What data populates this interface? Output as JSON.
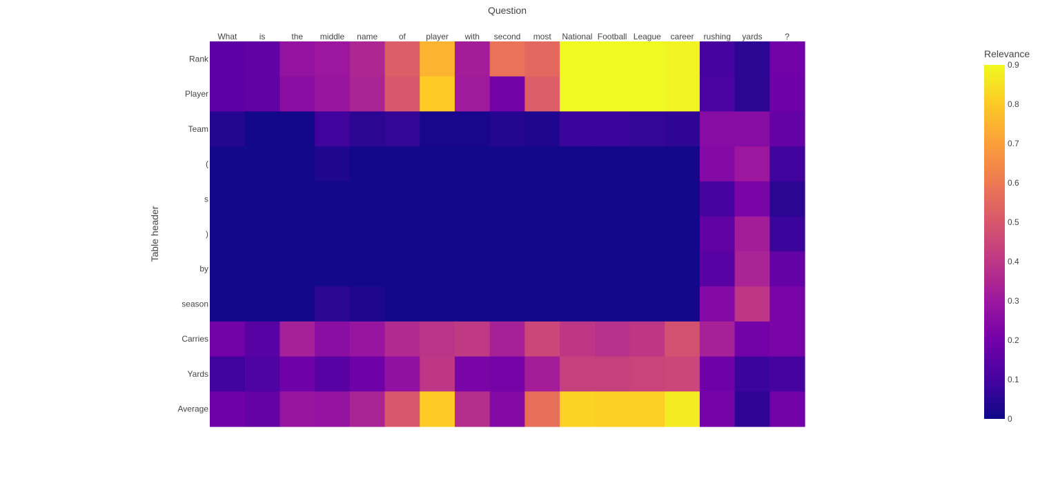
{
  "chart_data": {
    "type": "heatmap",
    "xlabel": "Question",
    "ylabel": "Table header",
    "x_categories": [
      "What",
      "is",
      "the",
      "middle",
      "name",
      "of",
      "player",
      "with",
      "second",
      "most",
      "National",
      "Football",
      "League",
      "career",
      "rushing",
      "yards",
      "?"
    ],
    "y_categories": [
      "Rank",
      "Player",
      "Team",
      "(",
      "s",
      ")",
      "by",
      "season",
      "Carries",
      "Yards",
      "Average"
    ],
    "values": [
      [
        0.15,
        0.16,
        0.28,
        0.3,
        0.35,
        0.52,
        0.75,
        0.32,
        0.58,
        0.55,
        0.9,
        0.9,
        0.9,
        0.89,
        0.1,
        0.05,
        0.2
      ],
      [
        0.15,
        0.16,
        0.26,
        0.29,
        0.34,
        0.5,
        0.8,
        0.31,
        0.2,
        0.52,
        0.9,
        0.9,
        0.9,
        0.89,
        0.11,
        0.05,
        0.19
      ],
      [
        0.04,
        0.01,
        0.01,
        0.09,
        0.05,
        0.07,
        0.02,
        0.02,
        0.04,
        0.03,
        0.08,
        0.08,
        0.07,
        0.06,
        0.25,
        0.25,
        0.17
      ],
      [
        0.01,
        0.01,
        0.01,
        0.03,
        0.01,
        0.01,
        0.01,
        0.01,
        0.01,
        0.01,
        0.01,
        0.01,
        0.01,
        0.01,
        0.24,
        0.3,
        0.09
      ],
      [
        0.01,
        0.01,
        0.01,
        0.01,
        0.01,
        0.01,
        0.01,
        0.01,
        0.01,
        0.01,
        0.01,
        0.01,
        0.01,
        0.01,
        0.1,
        0.22,
        0.05
      ],
      [
        0.01,
        0.01,
        0.01,
        0.01,
        0.01,
        0.01,
        0.01,
        0.01,
        0.01,
        0.01,
        0.01,
        0.01,
        0.01,
        0.01,
        0.16,
        0.32,
        0.08
      ],
      [
        0.01,
        0.01,
        0.01,
        0.01,
        0.01,
        0.01,
        0.01,
        0.01,
        0.01,
        0.01,
        0.01,
        0.01,
        0.01,
        0.01,
        0.14,
        0.34,
        0.17
      ],
      [
        0.01,
        0.01,
        0.01,
        0.05,
        0.03,
        0.01,
        0.01,
        0.01,
        0.01,
        0.01,
        0.01,
        0.01,
        0.01,
        0.01,
        0.24,
        0.4,
        0.22
      ],
      [
        0.2,
        0.14,
        0.33,
        0.26,
        0.29,
        0.36,
        0.39,
        0.41,
        0.33,
        0.45,
        0.4,
        0.38,
        0.4,
        0.48,
        0.33,
        0.2,
        0.22
      ],
      [
        0.09,
        0.12,
        0.19,
        0.14,
        0.19,
        0.27,
        0.4,
        0.22,
        0.21,
        0.32,
        0.43,
        0.43,
        0.44,
        0.45,
        0.19,
        0.08,
        0.1
      ],
      [
        0.19,
        0.17,
        0.29,
        0.28,
        0.34,
        0.5,
        0.8,
        0.37,
        0.24,
        0.57,
        0.82,
        0.81,
        0.81,
        0.87,
        0.21,
        0.06,
        0.2
      ]
    ],
    "zlim": [
      0,
      0.9
    ],
    "colorscale": [
      "#0d0887",
      "#46039f",
      "#7201a8",
      "#9c179e",
      "#bd3786",
      "#d8576b",
      "#ed7953",
      "#fb9f3a",
      "#fdca26",
      "#f0f921"
    ],
    "colorbar": {
      "title": "Relevance",
      "ticks": [
        "0",
        "0.1",
        "0.2",
        "0.3",
        "0.4",
        "0.5",
        "0.6",
        "0.7",
        "0.8",
        "0.9"
      ]
    },
    "grid": false,
    "legend": "right"
  }
}
